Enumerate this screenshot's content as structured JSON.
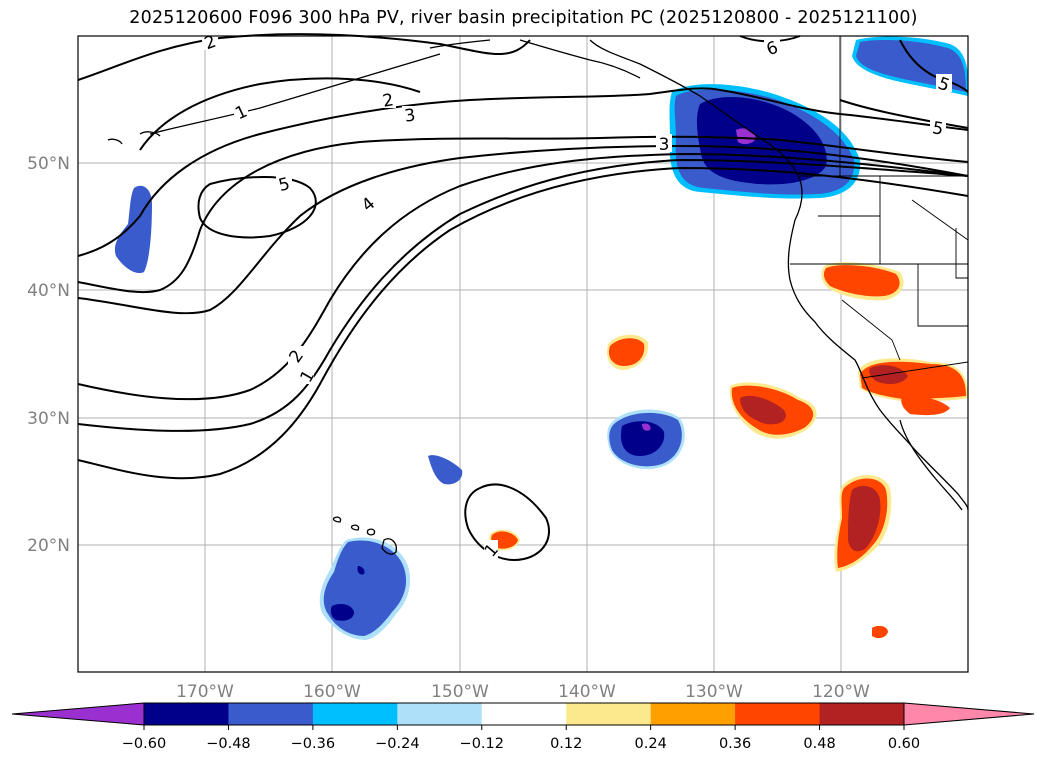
{
  "title": "2025120600 F096 300 hPa PV, river basin precipitation PC (2025120800 - 2025121100)",
  "map": {
    "lon_range": [
      -180,
      -110
    ],
    "lat_range": [
      10,
      60
    ],
    "lon_ticks": [
      "170°W",
      "160°W",
      "150°W",
      "140°W",
      "130°W",
      "120°W"
    ],
    "lat_ticks": [
      "50°N",
      "40°N",
      "30°N",
      "20°N"
    ],
    "grid": true
  },
  "contour_labels": [
    "2",
    "1",
    "2",
    "3",
    "5",
    "4",
    "3",
    "6",
    "5",
    "5",
    "2",
    "1",
    "1"
  ],
  "colorbar": {
    "ticks": [
      "−0.60",
      "−0.48",
      "−0.36",
      "−0.24",
      "−0.12",
      "0.12",
      "0.24",
      "0.36",
      "0.48",
      "0.60"
    ],
    "colors": [
      "#9b30d0",
      "#00008b",
      "#3a5bcc",
      "#00bfff",
      "#aee0fa",
      "#ffffff",
      "#fde98d",
      "#ffa000",
      "#ff4500",
      "#b22222",
      "#ff88aa"
    ],
    "extend": "both"
  }
}
